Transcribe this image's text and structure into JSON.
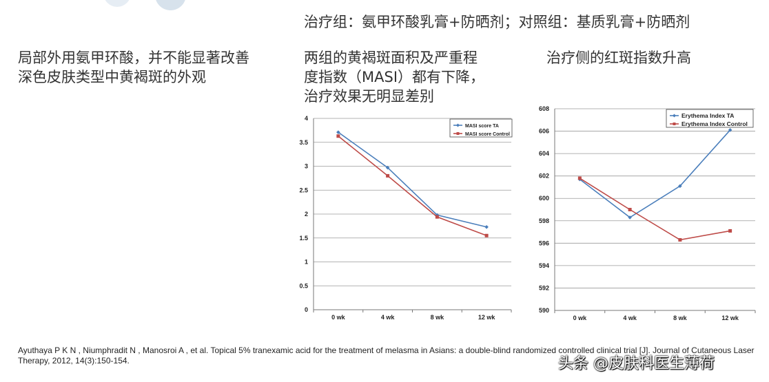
{
  "heading": {
    "groups": "治疗组：氨甲环酸乳膏+防晒剂；对照组：基质乳膏+防晒剂"
  },
  "points": {
    "left": [
      "局部外用氨甲环酸，并不能显著改善",
      "深色皮肤类型中黄褐斑的外观"
    ],
    "masi": [
      "两组的黄褐斑面积及严重程",
      "度指数（MASI）都有下降，",
      "治疗效果无明显差别"
    ],
    "erythema": [
      "治疗侧的红斑指数升高"
    ]
  },
  "chart_data": [
    {
      "type": "line",
      "categories": [
        "0 wk",
        "4 wk",
        "8 wk",
        "12 wk"
      ],
      "series": [
        {
          "name": "MASI score TA",
          "color": "#4a7ebb",
          "values": [
            3.71,
            2.97,
            1.98,
            1.73
          ]
        },
        {
          "name": "MASI score Control",
          "color": "#be4b48",
          "values": [
            3.63,
            2.8,
            1.94,
            1.55
          ]
        }
      ],
      "ylim": [
        0,
        4
      ],
      "yticks": [
        0,
        0.5,
        1,
        1.5,
        2,
        2.5,
        3,
        3.5,
        4
      ],
      "grid": true,
      "legend": "top-right"
    },
    {
      "type": "line",
      "categories": [
        "0 wk",
        "4 wk",
        "8 wk",
        "12 wk"
      ],
      "series": [
        {
          "name": "Erythema Index  TA",
          "color": "#4a7ebb",
          "values": [
            601.7,
            598.3,
            601.1,
            606.1
          ]
        },
        {
          "name": "Erythema Index  Control",
          "color": "#be4b48",
          "values": [
            601.8,
            599.0,
            596.3,
            597.1
          ]
        }
      ],
      "ylim": [
        590,
        608
      ],
      "yticks": [
        590,
        592,
        594,
        596,
        598,
        600,
        602,
        604,
        606,
        608
      ],
      "grid": true,
      "legend": "top-right"
    }
  ],
  "reference": "Ayuthaya P K N , Niumphradit N , Manosroi A , et al. Topical 5% tranexamic acid for the treatment of melasma in Asians: a double-blind randomized controlled clinical trial [J]. Journal of Cutaneous Laser Therapy, 2012, 14(3):150-154.",
  "watermark": "头条 @皮肤科医生薄荷"
}
